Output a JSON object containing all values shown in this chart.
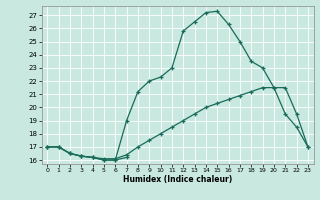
{
  "xlabel": "Humidex (Indice chaleur)",
  "bg_color": "#c8e8e0",
  "line_color": "#1a6b5a",
  "grid_color": "#ffffff",
  "ylim": [
    15.7,
    27.7
  ],
  "xlim": [
    -0.5,
    23.5
  ],
  "yticks": [
    16,
    17,
    18,
    19,
    20,
    21,
    22,
    23,
    24,
    25,
    26,
    27
  ],
  "xticks": [
    0,
    1,
    2,
    3,
    4,
    5,
    6,
    7,
    8,
    9,
    10,
    11,
    12,
    13,
    14,
    15,
    16,
    17,
    18,
    19,
    20,
    21,
    22,
    23
  ],
  "line1_x": [
    0,
    1,
    2,
    3,
    4,
    5,
    6,
    7
  ],
  "line1_y": [
    17.0,
    17.0,
    16.5,
    16.3,
    16.2,
    16.0,
    16.0,
    16.2
  ],
  "line2_x": [
    0,
    1,
    2,
    3,
    4,
    5,
    6,
    7,
    8,
    9,
    10,
    11,
    12,
    13,
    14,
    15,
    16,
    17,
    18,
    19,
    20,
    21,
    22,
    23
  ],
  "line2_y": [
    17.0,
    17.0,
    16.5,
    16.3,
    16.2,
    16.1,
    16.1,
    16.4,
    17.0,
    17.5,
    18.0,
    18.5,
    19.0,
    19.5,
    20.0,
    20.3,
    20.6,
    20.9,
    21.2,
    21.5,
    21.5,
    21.5,
    19.5,
    17.0
  ],
  "line3_x": [
    0,
    1,
    2,
    3,
    4,
    5,
    6,
    7,
    8,
    9,
    10,
    11,
    12,
    13,
    14,
    15,
    16,
    17,
    18,
    19,
    20,
    21,
    22,
    23
  ],
  "line3_y": [
    17.0,
    17.0,
    16.5,
    16.3,
    16.2,
    16.0,
    16.0,
    19.0,
    21.2,
    22.0,
    22.3,
    23.0,
    25.8,
    26.5,
    27.2,
    27.3,
    26.3,
    25.0,
    23.5,
    23.0,
    21.5,
    19.5,
    18.5,
    17.0
  ]
}
